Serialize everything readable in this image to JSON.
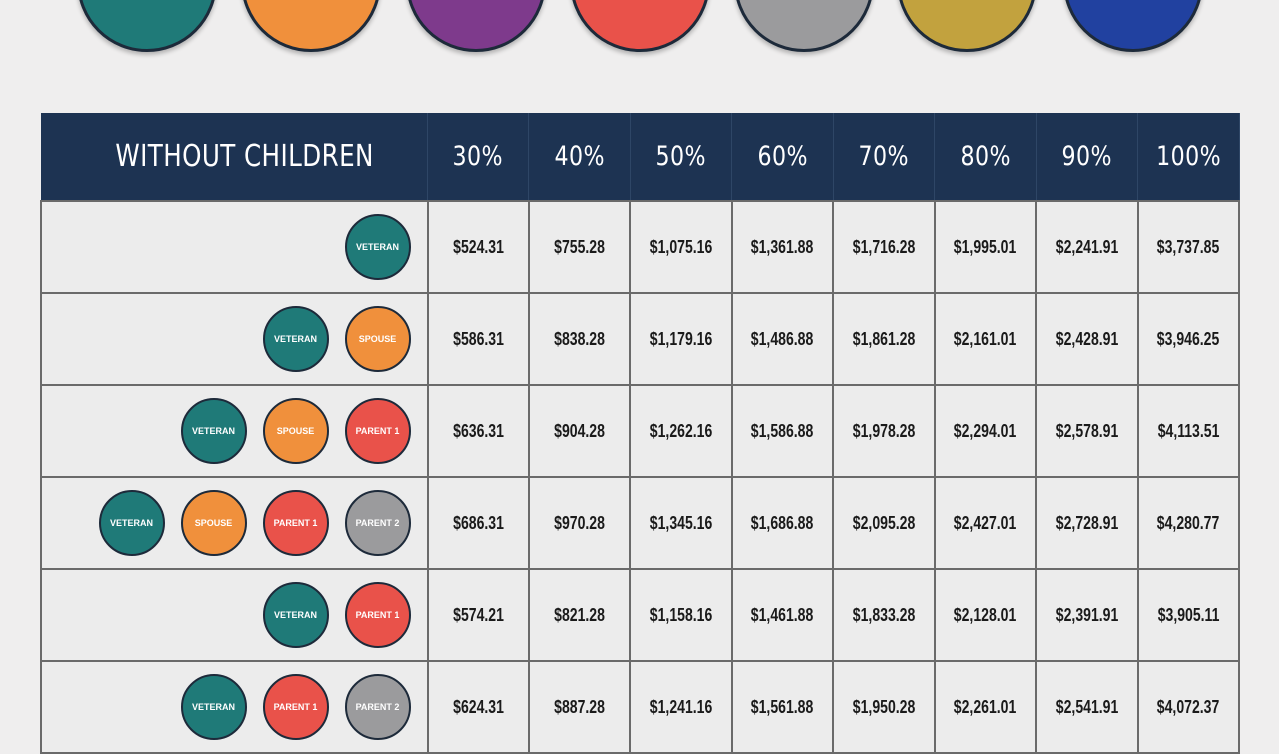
{
  "colors": {
    "veteran": "#1f7a78",
    "spouse": "#f0903c",
    "purple": "#7e3a8c",
    "parent_1": "#e9524a",
    "parent_2": "#9b9b9d",
    "gold": "#c2a23e",
    "blue": "#2141a0",
    "header": "#1d3352"
  },
  "top_circles": [
    "#1f7a78",
    "#f0903c",
    "#7e3a8c",
    "#e9524a",
    "#9b9b9d",
    "#c2a23e",
    "#2141a0"
  ],
  "table": {
    "title": "WITHOUT CHILDREN",
    "columns": [
      "30%",
      "40%",
      "50%",
      "60%",
      "70%",
      "80%",
      "90%",
      "100%"
    ],
    "rows": [
      {
        "badges": [
          "VETERAN"
        ],
        "values": [
          "$524.31",
          "$755.28",
          "$1,075.16",
          "$1,361.88",
          "$1,716.28",
          "$1,995.01",
          "$2,241.91",
          "$3,737.85"
        ]
      },
      {
        "badges": [
          "VETERAN",
          "SPOUSE"
        ],
        "values": [
          "$586.31",
          "$838.28",
          "$1,179.16",
          "$1,486.88",
          "$1,861.28",
          "$2,161.01",
          "$2,428.91",
          "$3,946.25"
        ]
      },
      {
        "badges": [
          "VETERAN",
          "SPOUSE",
          "PARENT 1"
        ],
        "values": [
          "$636.31",
          "$904.28",
          "$1,262.16",
          "$1,586.88",
          "$1,978.28",
          "$2,294.01",
          "$2,578.91",
          "$4,113.51"
        ]
      },
      {
        "badges": [
          "VETERAN",
          "SPOUSE",
          "PARENT 1",
          "PARENT 2"
        ],
        "values": [
          "$686.31",
          "$970.28",
          "$1,345.16",
          "$1,686.88",
          "$2,095.28",
          "$2,427.01",
          "$2,728.91",
          "$4,280.77"
        ]
      },
      {
        "badges": [
          "VETERAN",
          "PARENT 1"
        ],
        "values": [
          "$574.21",
          "$821.28",
          "$1,158.16",
          "$1,461.88",
          "$1,833.28",
          "$2,128.01",
          "$2,391.91",
          "$3,905.11"
        ]
      },
      {
        "badges": [
          "VETERAN",
          "PARENT 1",
          "PARENT 2"
        ],
        "values": [
          "$624.31",
          "$887.28",
          "$1,241.16",
          "$1,561.88",
          "$1,950.28",
          "$2,261.01",
          "$2,541.91",
          "$4,072.37"
        ]
      }
    ]
  }
}
